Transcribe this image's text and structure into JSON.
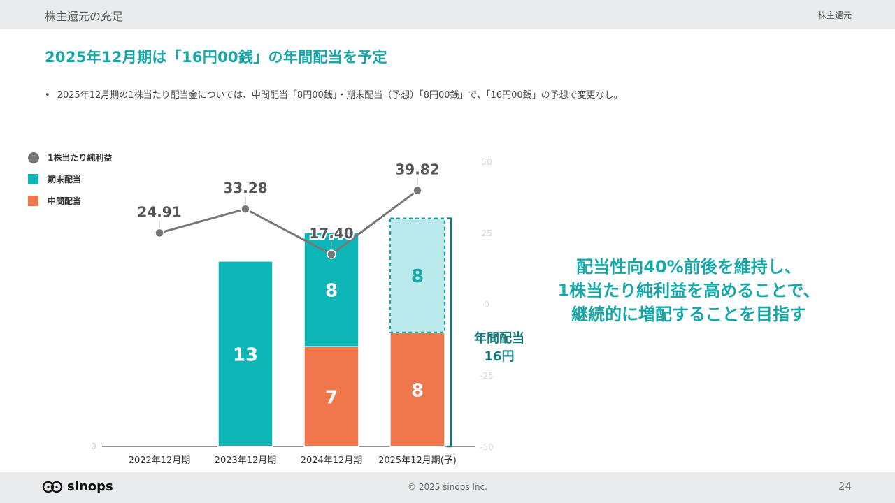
{
  "header": {
    "section_title": "株主還元の充足",
    "section_tag": "株主還元"
  },
  "headline": "2025年12月期は「16円00銭」の年間配当を予定",
  "bullet": "2025年12月期の1株当たり配当金については、中間配当「8円00銭」・期末配当（予想）「8円00銭」で、「16円00銭」の予想で変更なし。",
  "legend": [
    {
      "label": "1株当たり純利益",
      "shape": "circle",
      "color": "#777777"
    },
    {
      "label": "期末配当",
      "shape": "square",
      "color": "#0db5b7"
    },
    {
      "label": "中間配当",
      "shape": "square",
      "color": "#ef774b"
    }
  ],
  "chart_data": {
    "type": "bar",
    "categories": [
      "2022年12月期",
      "2023年12月期",
      "2024年12月期",
      "2025年12月期(予)"
    ],
    "series": [
      {
        "name": "中間配当",
        "values": [
          null,
          null,
          7,
          8
        ],
        "color": "#ef774b"
      },
      {
        "name": "期末配当",
        "values": [
          null,
          13,
          8,
          8
        ],
        "color": "#0db5b7",
        "forecast_color": "#b9e9ea"
      }
    ],
    "eps": {
      "name": "1株当たり純利益",
      "values": [
        24.91,
        33.28,
        17.4,
        39.82
      ],
      "labels": [
        "24.91",
        "33.28",
        "17.40",
        "39.82"
      ],
      "color": "#777777"
    },
    "left_axis": {
      "ylim": [
        0,
        20
      ],
      "ticks": [
        "0"
      ]
    },
    "right_axis": {
      "ylim": [
        -50,
        50
      ],
      "ticks": [
        "50",
        "25",
        "0",
        "-25",
        "-50"
      ]
    },
    "forecast_category_index": 3,
    "legend_position": "top-left"
  },
  "bracket_label": [
    "年間配当",
    "16円"
  ],
  "callout": [
    "配当性向40%前後を維持し、",
    "1株当たり純利益を高めることで、",
    "継続的に増配することを目指す"
  ],
  "footer": {
    "logo_text": "sinops",
    "copyright": "© 2025 sinops Inc.",
    "page_number": "24"
  }
}
